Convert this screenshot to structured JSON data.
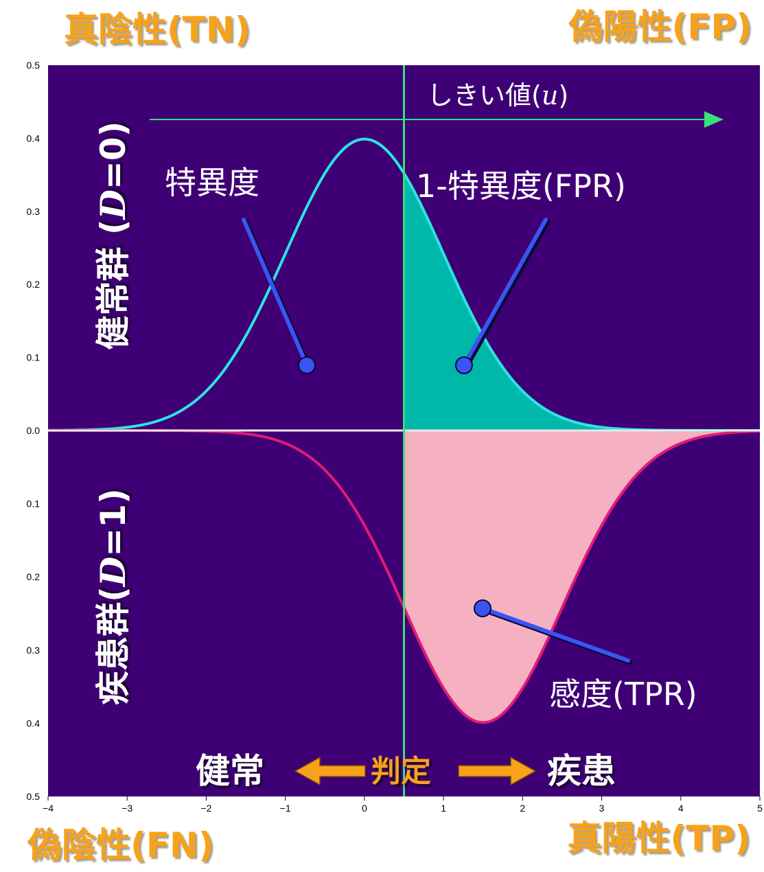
{
  "corners": {
    "top_left": "真陰性(TN)",
    "top_right": "偽陽性(FP)",
    "bottom_left": "偽陰性(FN)",
    "bottom_right": "真陽性(TP)"
  },
  "group_labels": {
    "healthy": {
      "text": "健常群 (",
      "var": "D",
      "eq": "=0)"
    },
    "disease": {
      "text": "疾患群(",
      "var": "D",
      "eq": "=1)"
    }
  },
  "annotations": {
    "threshold_text": "しきい値(",
    "threshold_var": "u",
    "threshold_close": ")",
    "specificity": "特異度",
    "fpr": "1-特異度(FPR)",
    "sensitivity": "感度(TPR)",
    "judge_left": "健常",
    "judge_center": "判定",
    "judge_right": "疾患"
  },
  "colors": {
    "plot_bg": "#3e0074",
    "healthy_curve": "#2ee2e6",
    "healthy_fill": "#00b8aa",
    "disease_curve": "#e01a78",
    "disease_fill": "#f5b1c2",
    "threshold_line": "#36e27a",
    "pointer": "#3a55f2",
    "arrow": "#f7a21b",
    "corner_text": "#f7a21b"
  },
  "chart_data": {
    "type": "area",
    "title": "",
    "xlabel": "",
    "ylabel": "",
    "xlim": [
      -4,
      5
    ],
    "x_ticks": [
      -4,
      -3,
      -2,
      -1,
      0,
      1,
      2,
      3,
      4,
      5
    ],
    "y_upper_range": [
      0.0,
      0.5
    ],
    "y_lower_range": [
      0.0,
      0.5
    ],
    "y_ticks_upper": [
      "0.5",
      "0.4",
      "0.3",
      "0.2",
      "0.1",
      "0.0"
    ],
    "y_ticks_lower": [
      "0.1",
      "0.2",
      "0.3",
      "0.4",
      "0.5"
    ],
    "threshold_u": 0.5,
    "series": [
      {
        "name": "健常群 (D=0)",
        "distribution": "normal",
        "mean": 0,
        "sd": 1,
        "direction": "up",
        "shaded_region": "x >= u"
      },
      {
        "name": "疾患群(D=1)",
        "distribution": "normal",
        "mean": 1.5,
        "sd": 1,
        "direction": "down",
        "shaded_region": "x >= u"
      }
    ],
    "grid": false,
    "legend": "none"
  }
}
